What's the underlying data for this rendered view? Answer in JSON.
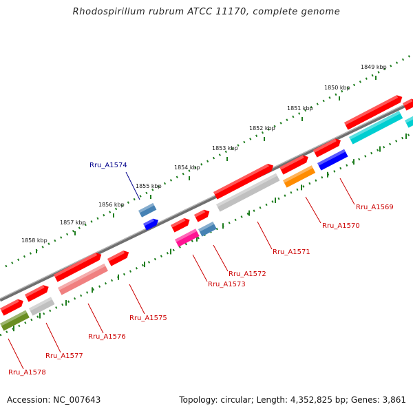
{
  "title": "Rhodospirillum rubrum ATCC 11170, complete genome",
  "footer": {
    "accession": "Accession: NC_007643",
    "summary": "Topology: circular; Length: 4,352,825 bp; Genes: 3,861"
  },
  "ruler_labels": [
    "1849 kbp",
    "1850 kbp",
    "1851 kbp",
    "1852 kbp",
    "1853 kbp",
    "1854 kbp",
    "1855 kbp",
    "1856 kbp",
    "1857 kbp",
    "1858 kbp"
  ],
  "colors": {
    "backbone": "#8a8a8a",
    "ticks": "#1e7d1e",
    "label_default": "#cc0000",
    "label_selected": "#00008b"
  },
  "genes": [
    {
      "label": "Rru_A1569",
      "color": "#ff0000"
    },
    {
      "label": "Rru_A1570",
      "color": "#ff8c00"
    },
    {
      "label": "Rru_A1571",
      "color": "#c0c0c0"
    },
    {
      "label": "Rru_A1572",
      "color": "#4682b4"
    },
    {
      "label": "Rru_A1573",
      "color": "#ff1493"
    },
    {
      "label": "Rru_A1574",
      "color": "#4682b4"
    },
    {
      "label": "Rru_A1575",
      "color": "#ff0000"
    },
    {
      "label": "Rru_A1576",
      "color": "#f08080"
    },
    {
      "label": "Rru_A1577",
      "color": "#c0c0c0"
    },
    {
      "label": "Rru_A1578",
      "color": "#6b8e23"
    }
  ]
}
